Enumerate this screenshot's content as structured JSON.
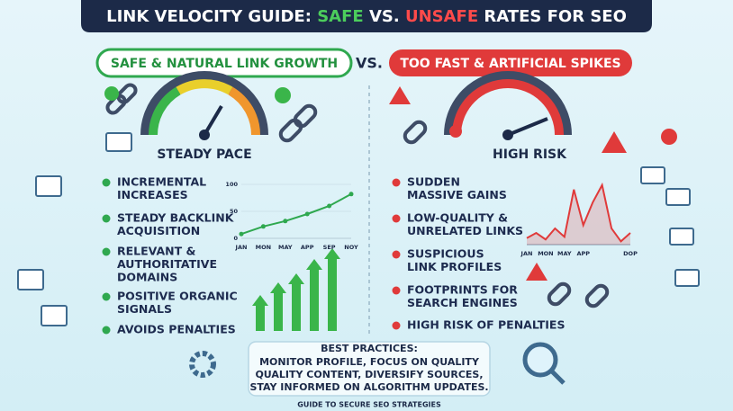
{
  "header": {
    "title_parts": [
      "LINK VELOCITY GUIDE: ",
      "SAFE",
      " VS. ",
      "UNSAFE",
      " RATES FOR SEO"
    ]
  },
  "vs": "VS.",
  "left": {
    "badge": "SAFE & NATURAL LINK GROWTH",
    "gauge_label": "STEADY PACE",
    "items": [
      [
        "INCREMENTAL",
        "INCREASES"
      ],
      [
        "STEADY BACKLINK",
        "ACQUISITION"
      ],
      [
        "RELEVANT &",
        "AUTHORITATIVE",
        "DOMAINS"
      ],
      [
        "POSITIVE ORGANIC",
        "SIGNALS"
      ],
      [
        "AVOIDS PENALTIES"
      ]
    ],
    "chart": {
      "type": "line",
      "categories": [
        "JAN",
        "MON",
        "MAY",
        "APP",
        "SEP",
        "NOY"
      ],
      "values": [
        8,
        22,
        32,
        45,
        60,
        82
      ],
      "ylim": [
        0,
        100
      ],
      "yticks": [
        0,
        50,
        100
      ],
      "color": "#2fa84f"
    }
  },
  "right": {
    "badge": "TOO FAST & ARTIFICIAL SPIKES",
    "gauge_label": "HIGH RISK",
    "items": [
      [
        "SUDDEN",
        "MASSIVE GAINS"
      ],
      [
        "LOW-QUALITY &",
        "UNRELATED LINKS"
      ],
      [
        "SUSPICIOUS",
        "LINK PROFILES"
      ],
      [
        "FOOTPRINTS FOR",
        "SEARCH ENGINES"
      ],
      [
        "HIGH RISK OF PENALTIES"
      ]
    ],
    "chart": {
      "type": "line",
      "categories": [
        "JAN",
        null,
        "MON",
        null,
        "MAY",
        null,
        "APP",
        null,
        null,
        null,
        null,
        "DOP"
      ],
      "values": [
        10,
        18,
        8,
        25,
        12,
        85,
        30,
        65,
        92,
        25,
        5,
        18
      ],
      "ylim": [
        0,
        100
      ],
      "color": "#e03a3a"
    }
  },
  "best_practices": {
    "title": "BEST PRACTICES:",
    "lines": [
      "MONITOR PROFILE, FOCUS ON QUALITY",
      "QUALITY CONTENT, DIVERSIFY SOURCES,",
      "STAY INFORMED ON ALGORITHM UPDATES."
    ]
  },
  "footer": "GUIDE TO SECURE SEO STRATEGIES"
}
